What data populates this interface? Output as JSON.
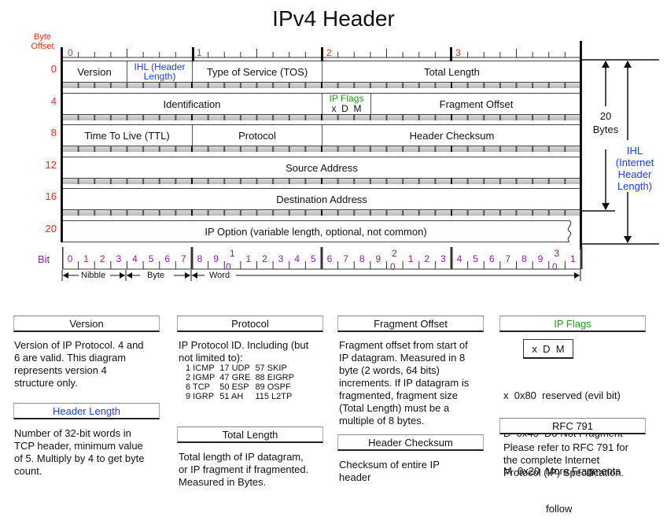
{
  "title": "IPv4 Header",
  "byte_offset_label_1": "Byte",
  "byte_offset_label_2": "Offset",
  "offsets": [
    "0",
    "4",
    "8",
    "12",
    "16",
    "20"
  ],
  "top_bytes": [
    "0",
    "1",
    "2",
    "3"
  ],
  "rows": {
    "r0": {
      "version": "Version",
      "ihl_1": "IHL (Header",
      "ihl_2": "Length)",
      "tos": "Type of Service (TOS)",
      "total_length": "Total Length"
    },
    "r4": {
      "identification": "Identification",
      "ip_flags": "IP Flags",
      "flags_bits": "x  D  M",
      "fragment_offset": "Fragment Offset"
    },
    "r8": {
      "ttl": "Time To Live (TTL)",
      "protocol": "Protocol",
      "checksum": "Header Checksum"
    },
    "r12": {
      "source": "Source Address"
    },
    "r16": {
      "destination": "Destination Address"
    },
    "r20": {
      "options": "IP Option (variable length, optional, not common)"
    }
  },
  "right_annotations": {
    "twenty_1": "20",
    "twenty_2": "Bytes",
    "ihl_1": "IHL",
    "ihl_2": "(Internet",
    "ihl_3": "Header",
    "ihl_4": "Length)"
  },
  "bit_label": "Bit",
  "bits_top": [
    "0",
    "1",
    "2",
    "3",
    "4",
    "5",
    "6",
    "7",
    "8",
    "9",
    "1",
    "1",
    "2",
    "3",
    "4",
    "5",
    "6",
    "7",
    "8",
    "9",
    "2",
    "1",
    "2",
    "3",
    "4",
    "5",
    "6",
    "7",
    "8",
    "9",
    "3",
    "1"
  ],
  "bits_bottom": {
    "b10": "0",
    "b20": "0",
    "b30": "0"
  },
  "scale": {
    "nibble": "Nibble",
    "byte": "Byte",
    "word": "Word"
  },
  "legend": {
    "version": {
      "title": "Version",
      "text": [
        "Version of IP Protocol.  4 and",
        "6 are valid.  This diagram",
        "represents version 4",
        "structure only."
      ]
    },
    "header_length": {
      "title": "Header Length",
      "text": [
        "Number of 32-bit words in",
        "TCP header, minimum value",
        "of 5.  Multiply by 4 to get byte",
        "count."
      ]
    },
    "protocol": {
      "title": "Protocol",
      "text": [
        "IP Protocol ID.  Including (but",
        "not limited to):"
      ],
      "table": [
        [
          "1 ICMP",
          "17 UDP",
          "57 SKIP"
        ],
        [
          "2 IGMP",
          "47 GRE",
          "88 EIGRP"
        ],
        [
          "6 TCP",
          "50 ESP",
          "89 OSPF"
        ],
        [
          "9 IGRP",
          "51 AH",
          "115 L2TP"
        ]
      ]
    },
    "total_length": {
      "title": "Total Length",
      "text": [
        "Total length of IP datagram,",
        "or IP fragment if fragmented.",
        "Measured in Bytes."
      ]
    },
    "fragment_offset": {
      "title": "Fragment Offset",
      "text": [
        "Fragment offset from start of",
        "IP datagram.  Measured in 8",
        "byte (2 words, 64 bits)",
        "increments.  If IP datagram is",
        "fragmented, fragment size",
        "(Total Length) must be a",
        "multiple of 8 bytes."
      ]
    },
    "header_checksum": {
      "title": "Header Checksum",
      "text": [
        "Checksum of entire IP",
        "header"
      ]
    },
    "ip_flags": {
      "title": "IP Flags",
      "box": "x  D  M",
      "text": [
        "x  0x80  reserved (evil bit)",
        "D  0x40  Do Not Fragment",
        "M  0x20  More Fragments",
        "               follow"
      ]
    },
    "rfc": {
      "title": "RFC 791",
      "text": [
        "Please refer to RFC 791 for",
        "the complete Internet",
        "Protocol (IP) Specification."
      ]
    }
  }
}
